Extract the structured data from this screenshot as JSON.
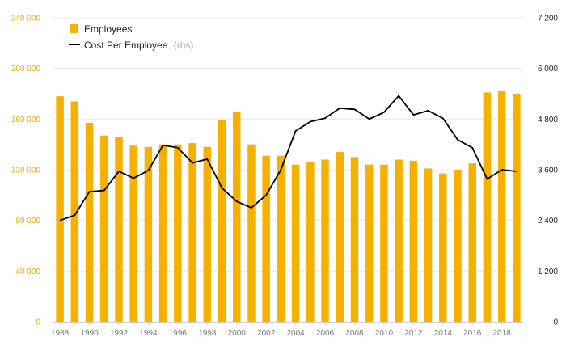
{
  "chart_data": {
    "type": "bar",
    "x": [
      1988,
      1989,
      1990,
      1991,
      1992,
      1993,
      1994,
      1995,
      1996,
      1997,
      1998,
      1999,
      2000,
      2001,
      2002,
      2003,
      2004,
      2005,
      2006,
      2007,
      2008,
      2009,
      2010,
      2011,
      2012,
      2013,
      2014,
      2015,
      2016,
      2017,
      2018,
      2019
    ],
    "xtick_labels": [
      "1988",
      "1990",
      "1992",
      "1994",
      "1996",
      "1998",
      "2000",
      "2002",
      "2004",
      "2006",
      "2008",
      "2010",
      "2012",
      "2014",
      "2016",
      "2018"
    ],
    "series": [
      {
        "name": "Employees",
        "type": "bar",
        "axis": "left",
        "color": "#f5b000",
        "values": [
          178000,
          174000,
          157000,
          147000,
          146000,
          139000,
          138000,
          140000,
          140000,
          141000,
          138000,
          159000,
          166000,
          140000,
          131000,
          131000,
          124000,
          126000,
          128000,
          134000,
          130000,
          124000,
          124000,
          128000,
          127000,
          121000,
          117000,
          120000,
          125000,
          181000,
          182000,
          180000
        ]
      },
      {
        "name": "Cost Per Employee",
        "type": "line",
        "axis": "right",
        "color": "#000000",
        "values": [
          2400,
          2520,
          3080,
          3110,
          3560,
          3400,
          3580,
          4180,
          4120,
          3760,
          3850,
          3170,
          2850,
          2700,
          3000,
          3600,
          4520,
          4740,
          4820,
          5060,
          5030,
          4800,
          4960,
          5350,
          4900,
          5000,
          4820,
          4310,
          4120,
          3380,
          3600,
          3560
        ]
      }
    ],
    "y_left": {
      "lim": [
        0,
        240000
      ],
      "ticks": [
        "0",
        "40 000",
        "80 000",
        "120 000",
        "160 000",
        "200 000",
        "240 000"
      ]
    },
    "y_right": {
      "lim": [
        0,
        7200
      ],
      "ticks": [
        "0",
        "1 200",
        "2 400",
        "3 600",
        "4 800",
        "6 000",
        "7 200"
      ]
    },
    "legend": {
      "position": "top-left",
      "items": [
        {
          "label": "Employees",
          "note": ""
        },
        {
          "label": "Cost Per Employee",
          "note": "(rhs)"
        }
      ]
    },
    "grid": true
  }
}
